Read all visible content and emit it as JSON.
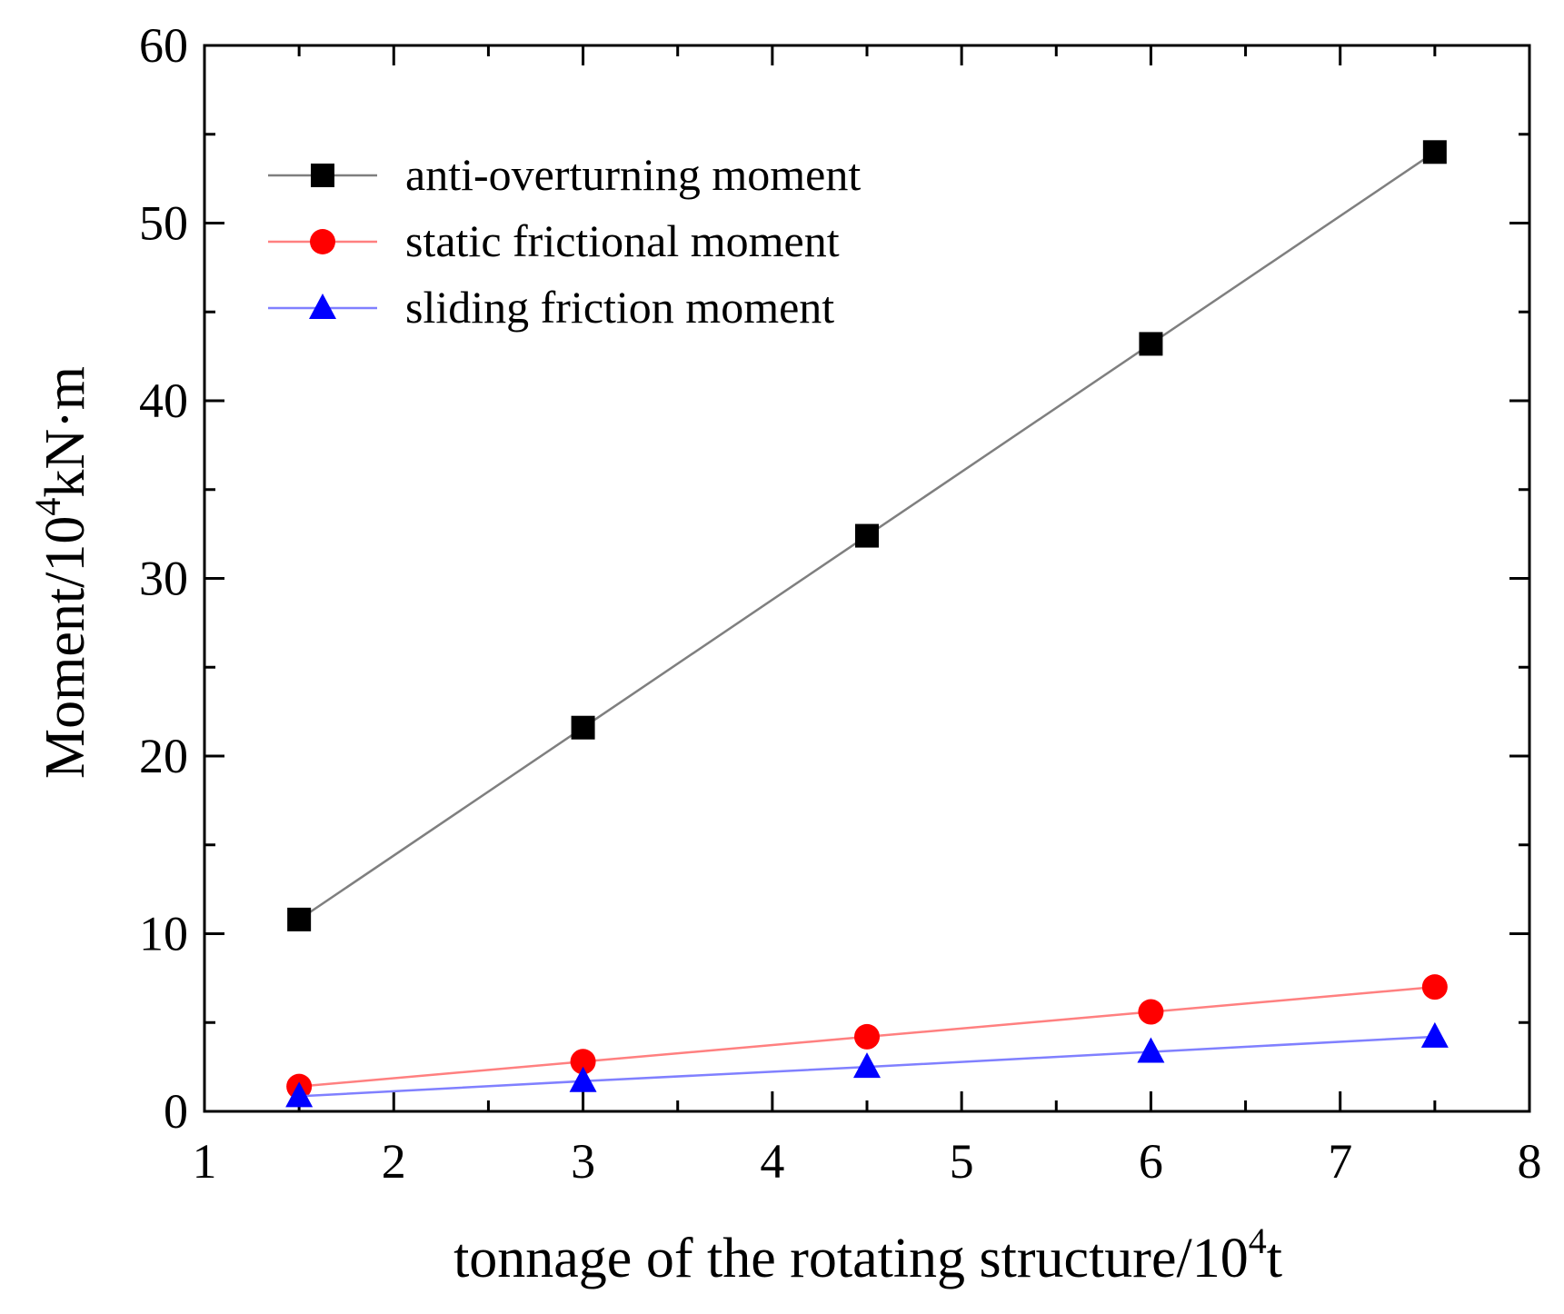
{
  "chart_data": {
    "type": "line",
    "title": "",
    "xlabel": "tonnage of the rotating structure/10",
    "xlabel_sup": "4",
    "xlabel_tail": "t",
    "ylabel": "Moment/10",
    "ylabel_sup": "4",
    "ylabel_tail": "kN·m",
    "xlim": [
      1,
      8
    ],
    "ylim": [
      0,
      60
    ],
    "xticks": [
      1,
      2,
      3,
      4,
      5,
      6,
      7,
      8
    ],
    "yticks": [
      0,
      10,
      20,
      30,
      40,
      50,
      60
    ],
    "x": [
      1.5,
      3,
      4.5,
      6,
      7.5
    ],
    "grid": false,
    "legend_position": "top-left",
    "series": [
      {
        "name": "anti-overturning moment",
        "marker": "square",
        "line_color": "#7f7f7f",
        "marker_color": "#000000",
        "values": [
          10.8,
          21.6,
          32.4,
          43.2,
          54.0
        ]
      },
      {
        "name": "static frictional moment",
        "marker": "circle",
        "line_color": "#ff8080",
        "marker_color": "#ff0000",
        "values": [
          1.4,
          2.8,
          4.2,
          5.6,
          7.0
        ]
      },
      {
        "name": "sliding friction moment",
        "marker": "triangle",
        "line_color": "#8080ff",
        "marker_color": "#0000ff",
        "values": [
          0.85,
          1.7,
          2.5,
          3.35,
          4.2
        ]
      }
    ]
  }
}
